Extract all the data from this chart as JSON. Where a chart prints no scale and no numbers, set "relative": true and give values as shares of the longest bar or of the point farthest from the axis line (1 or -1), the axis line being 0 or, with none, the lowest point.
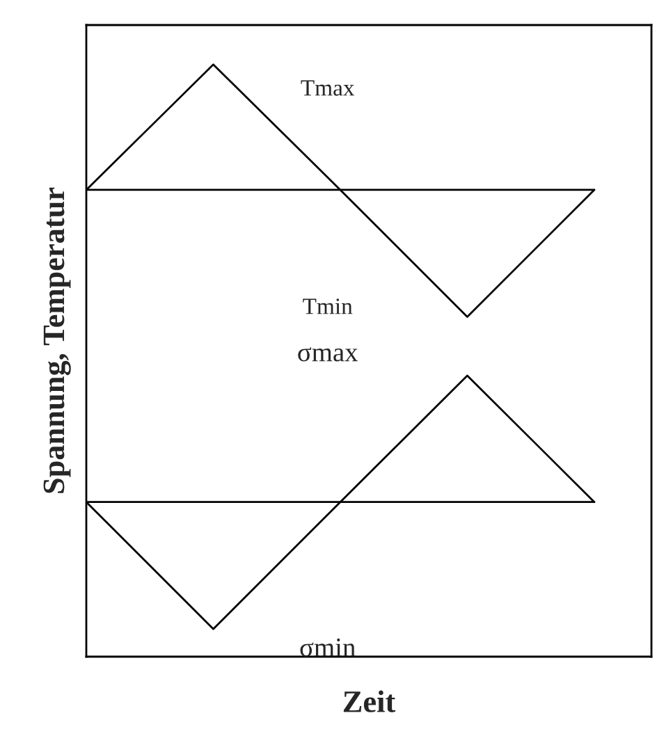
{
  "chart_data": {
    "type": "line",
    "relative": true,
    "xlabel": "Zeit",
    "ylabel": "Spannung, Temperatur",
    "categories": [
      null,
      null,
      null,
      null,
      null
    ],
    "series": [
      {
        "color": "#000000",
        "values": [
          0.778,
          1,
          0.778,
          0.553,
          0.778
        ]
      },
      {
        "color": "#000000",
        "values": [
          0.225,
          0,
          0.225,
          0.449,
          0.225
        ]
      },
      {
        "color": "#000000",
        "values": [
          0.778,
          0.778,
          0.778,
          0.778,
          0.778
        ]
      },
      {
        "color": "#000000",
        "values": [
          0.225,
          0.225,
          0.225,
          0.225,
          0.225
        ]
      }
    ],
    "annotations": [
      "Tmax",
      "Tmin",
      "σmax",
      "σmin"
    ]
  }
}
